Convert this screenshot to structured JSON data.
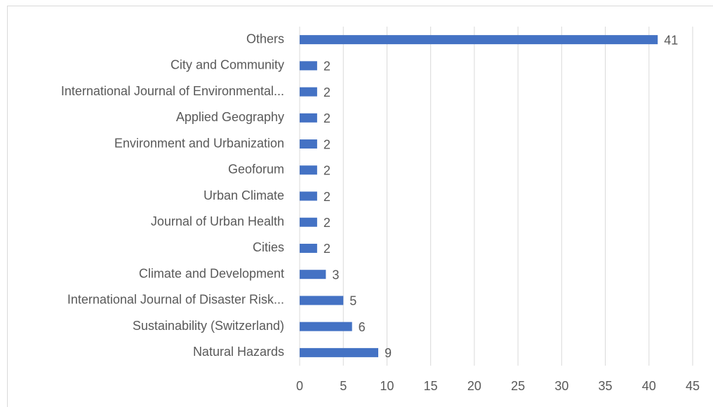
{
  "chart_data": {
    "type": "bar",
    "orientation": "horizontal",
    "categories": [
      "Others",
      "City and Community",
      "International Journal of Environmental...",
      "Applied Geography",
      "Environment and Urbanization",
      "Geoforum",
      "Urban Climate",
      "Journal of Urban Health",
      "Cities",
      "Climate and Development",
      "International Journal of Disaster Risk...",
      "Sustainability (Switzerland)",
      "Natural Hazards"
    ],
    "values": [
      41,
      2,
      2,
      2,
      2,
      2,
      2,
      2,
      2,
      3,
      5,
      6,
      9
    ],
    "color": "#4472c4",
    "xlim": [
      0,
      45
    ],
    "xticks": [
      0,
      5,
      10,
      15,
      20,
      25,
      30,
      35,
      40,
      45
    ],
    "grid": true
  }
}
